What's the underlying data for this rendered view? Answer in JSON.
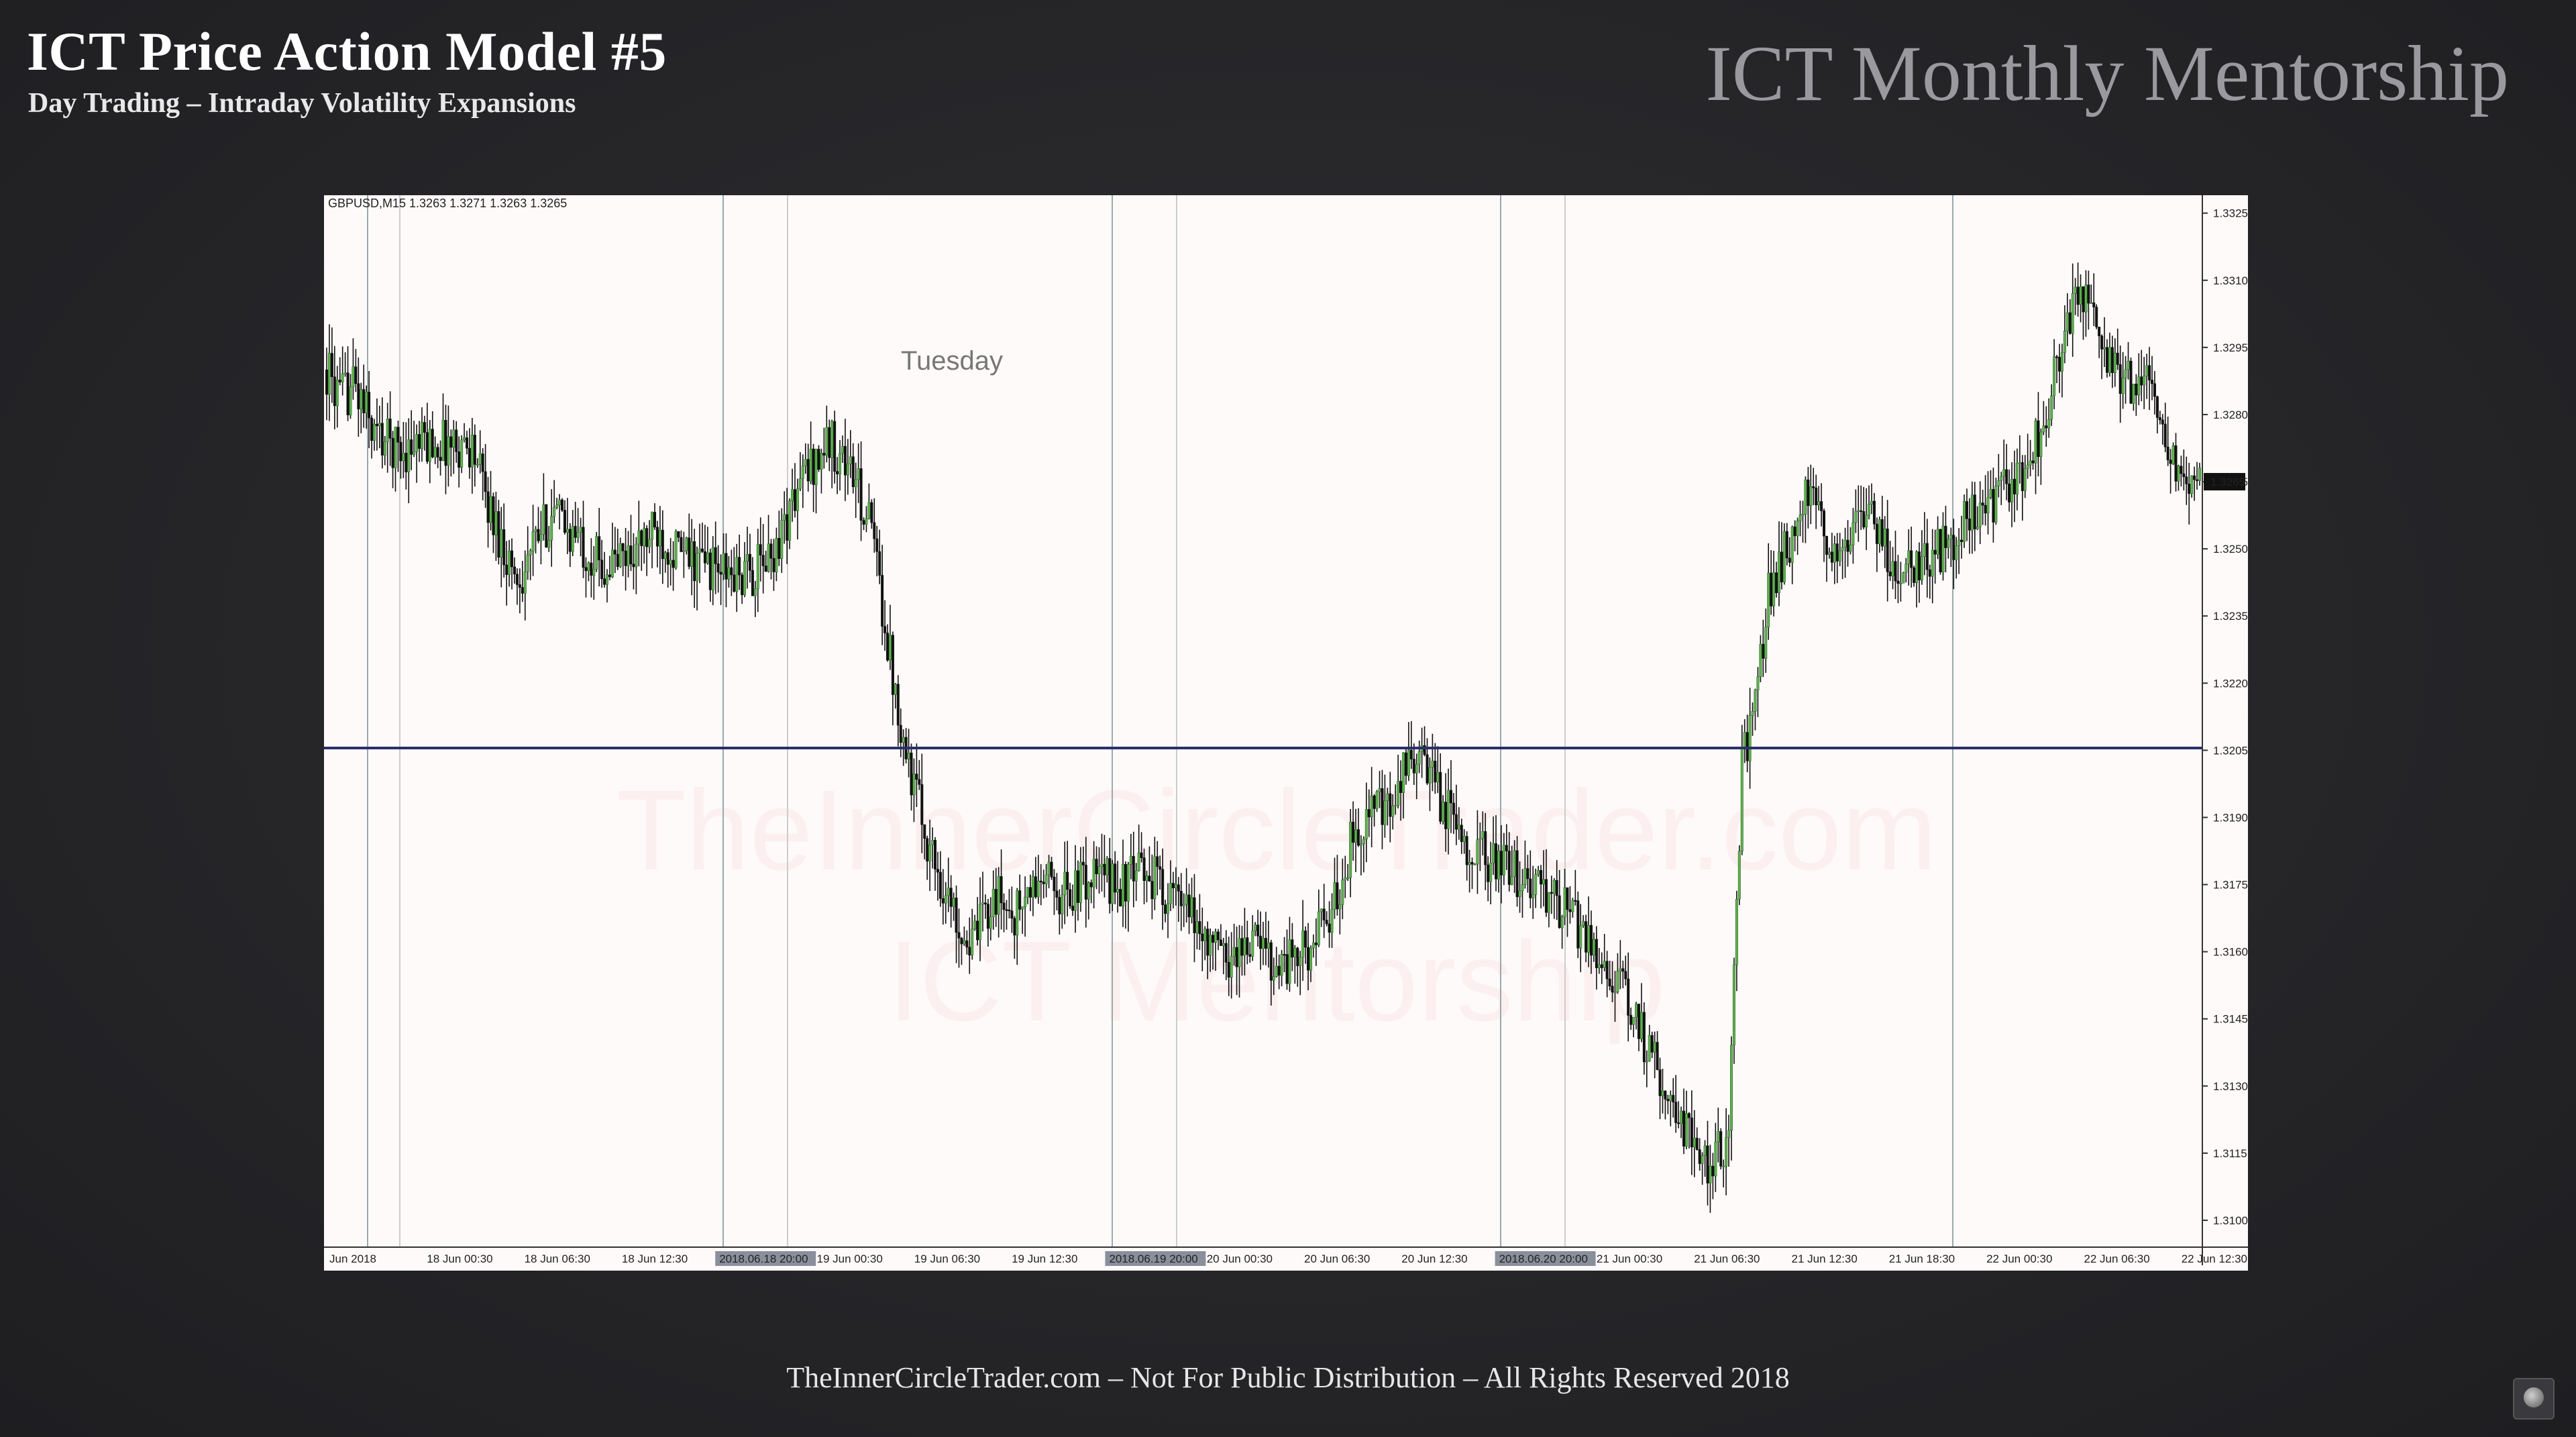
{
  "slide": {
    "title": "ICT Price Action Model #5",
    "subtitle": "Day Trading – Intraday Volatility Expansions",
    "brand": "ICT Monthly Mentorship",
    "footer": "TheInnerCircleTrader.com – Not For Public Distribution – All Rights Reserved 2018"
  },
  "chart_data": {
    "type": "candlestick",
    "symbol_header": "GBPUSD,M15  1.3263 1.3271 1.3263 1.3265",
    "annotation": "Tuesday",
    "watermark": [
      "TheInnerCircleTrader.com",
      "ICT Mentorship"
    ],
    "ylim": [
      1.3094,
      1.3329
    ],
    "yticks": [
      "1.3325",
      "1.3310",
      "1.3295",
      "1.3280",
      "1.3265",
      "1.3250",
      "1.3235",
      "1.3220",
      "1.3205",
      "1.3190",
      "1.3175",
      "1.3160",
      "1.3145",
      "1.3130",
      "1.3115",
      "1.3100"
    ],
    "current_price_label": "1.3265",
    "current_price": 1.3265,
    "horizontal_level": 1.32055,
    "xticks": [
      "Jun 2018",
      "18 Jun 00:30",
      "18 Jun 06:30",
      "18 Jun 12:30",
      "2018.06.18 20:00",
      "19 Jun 00:30",
      "19 Jun 06:30",
      "19 Jun 12:30",
      "2018.06.19 20:00",
      "20 Jun 00:30",
      "20 Jun 06:30",
      "20 Jun 12:30",
      "2018.06.20 20:00",
      "21 Jun 00:30",
      "21 Jun 06:30",
      "21 Jun 12:30",
      "21 Jun 18:30",
      "22 Jun 00:30",
      "22 Jun 06:30",
      "22 Jun 12:30"
    ],
    "highlighted_xticks": [
      "2018.06.18 20:00",
      "2018.06.19 20:00",
      "2018.06.20 20:00"
    ],
    "session_divider_labels": [
      "2018.06.18 20:00",
      "2018.06.19 20:00",
      "2018.06.20 20:00"
    ],
    "price_path_close": [
      [
        0,
        1.329
      ],
      [
        5,
        1.3283
      ],
      [
        10,
        1.3287
      ],
      [
        18,
        1.3276
      ],
      [
        28,
        1.3272
      ],
      [
        40,
        1.3274
      ],
      [
        55,
        1.3273
      ],
      [
        62,
        1.3258
      ],
      [
        72,
        1.3243
      ],
      [
        85,
        1.3258
      ],
      [
        95,
        1.3252
      ],
      [
        105,
        1.3246
      ],
      [
        115,
        1.3249
      ],
      [
        125,
        1.3254
      ],
      [
        135,
        1.3248
      ],
      [
        142,
        1.3247
      ],
      [
        152,
        1.3244
      ],
      [
        160,
        1.3244
      ],
      [
        168,
        1.3248
      ],
      [
        180,
        1.3266
      ],
      [
        190,
        1.3274
      ],
      [
        198,
        1.3268
      ],
      [
        206,
        1.3254
      ],
      [
        214,
        1.3222
      ],
      [
        220,
        1.3202
      ],
      [
        228,
        1.3183
      ],
      [
        236,
        1.317
      ],
      [
        244,
        1.3161
      ],
      [
        252,
        1.3173
      ],
      [
        260,
        1.3168
      ],
      [
        270,
        1.3176
      ],
      [
        280,
        1.3173
      ],
      [
        290,
        1.3177
      ],
      [
        300,
        1.3175
      ],
      [
        310,
        1.3178
      ],
      [
        320,
        1.3172
      ],
      [
        330,
        1.3165
      ],
      [
        340,
        1.3158
      ],
      [
        350,
        1.3163
      ],
      [
        360,
        1.3157
      ],
      [
        370,
        1.316
      ],
      [
        380,
        1.3168
      ],
      [
        388,
        1.3186
      ],
      [
        395,
        1.3192
      ],
      [
        402,
        1.319
      ],
      [
        410,
        1.3205
      ],
      [
        416,
        1.32
      ],
      [
        424,
        1.3191
      ],
      [
        432,
        1.3184
      ],
      [
        440,
        1.318
      ],
      [
        450,
        1.3177
      ],
      [
        460,
        1.3173
      ],
      [
        470,
        1.3168
      ],
      [
        478,
        1.3162
      ],
      [
        486,
        1.3155
      ],
      [
        494,
        1.3146
      ],
      [
        502,
        1.3135
      ],
      [
        510,
        1.3125
      ],
      [
        518,
        1.3115
      ],
      [
        524,
        1.3112
      ],
      [
        530,
        1.312
      ],
      [
        535,
        1.3203
      ],
      [
        540,
        1.3214
      ],
      [
        545,
        1.324
      ],
      [
        552,
        1.325
      ],
      [
        560,
        1.3262
      ],
      [
        568,
        1.325
      ],
      [
        576,
        1.3253
      ],
      [
        584,
        1.3259
      ],
      [
        592,
        1.3246
      ],
      [
        600,
        1.3246
      ],
      [
        610,
        1.325
      ],
      [
        620,
        1.3256
      ],
      [
        630,
        1.326
      ],
      [
        640,
        1.3266
      ],
      [
        650,
        1.328
      ],
      [
        656,
        1.3297
      ],
      [
        662,
        1.3307
      ],
      [
        668,
        1.33
      ],
      [
        676,
        1.329
      ],
      [
        684,
        1.3287
      ],
      [
        690,
        1.3285
      ],
      [
        696,
        1.3272
      ],
      [
        702,
        1.3261
      ],
      [
        708,
        1.3265
      ]
    ]
  }
}
